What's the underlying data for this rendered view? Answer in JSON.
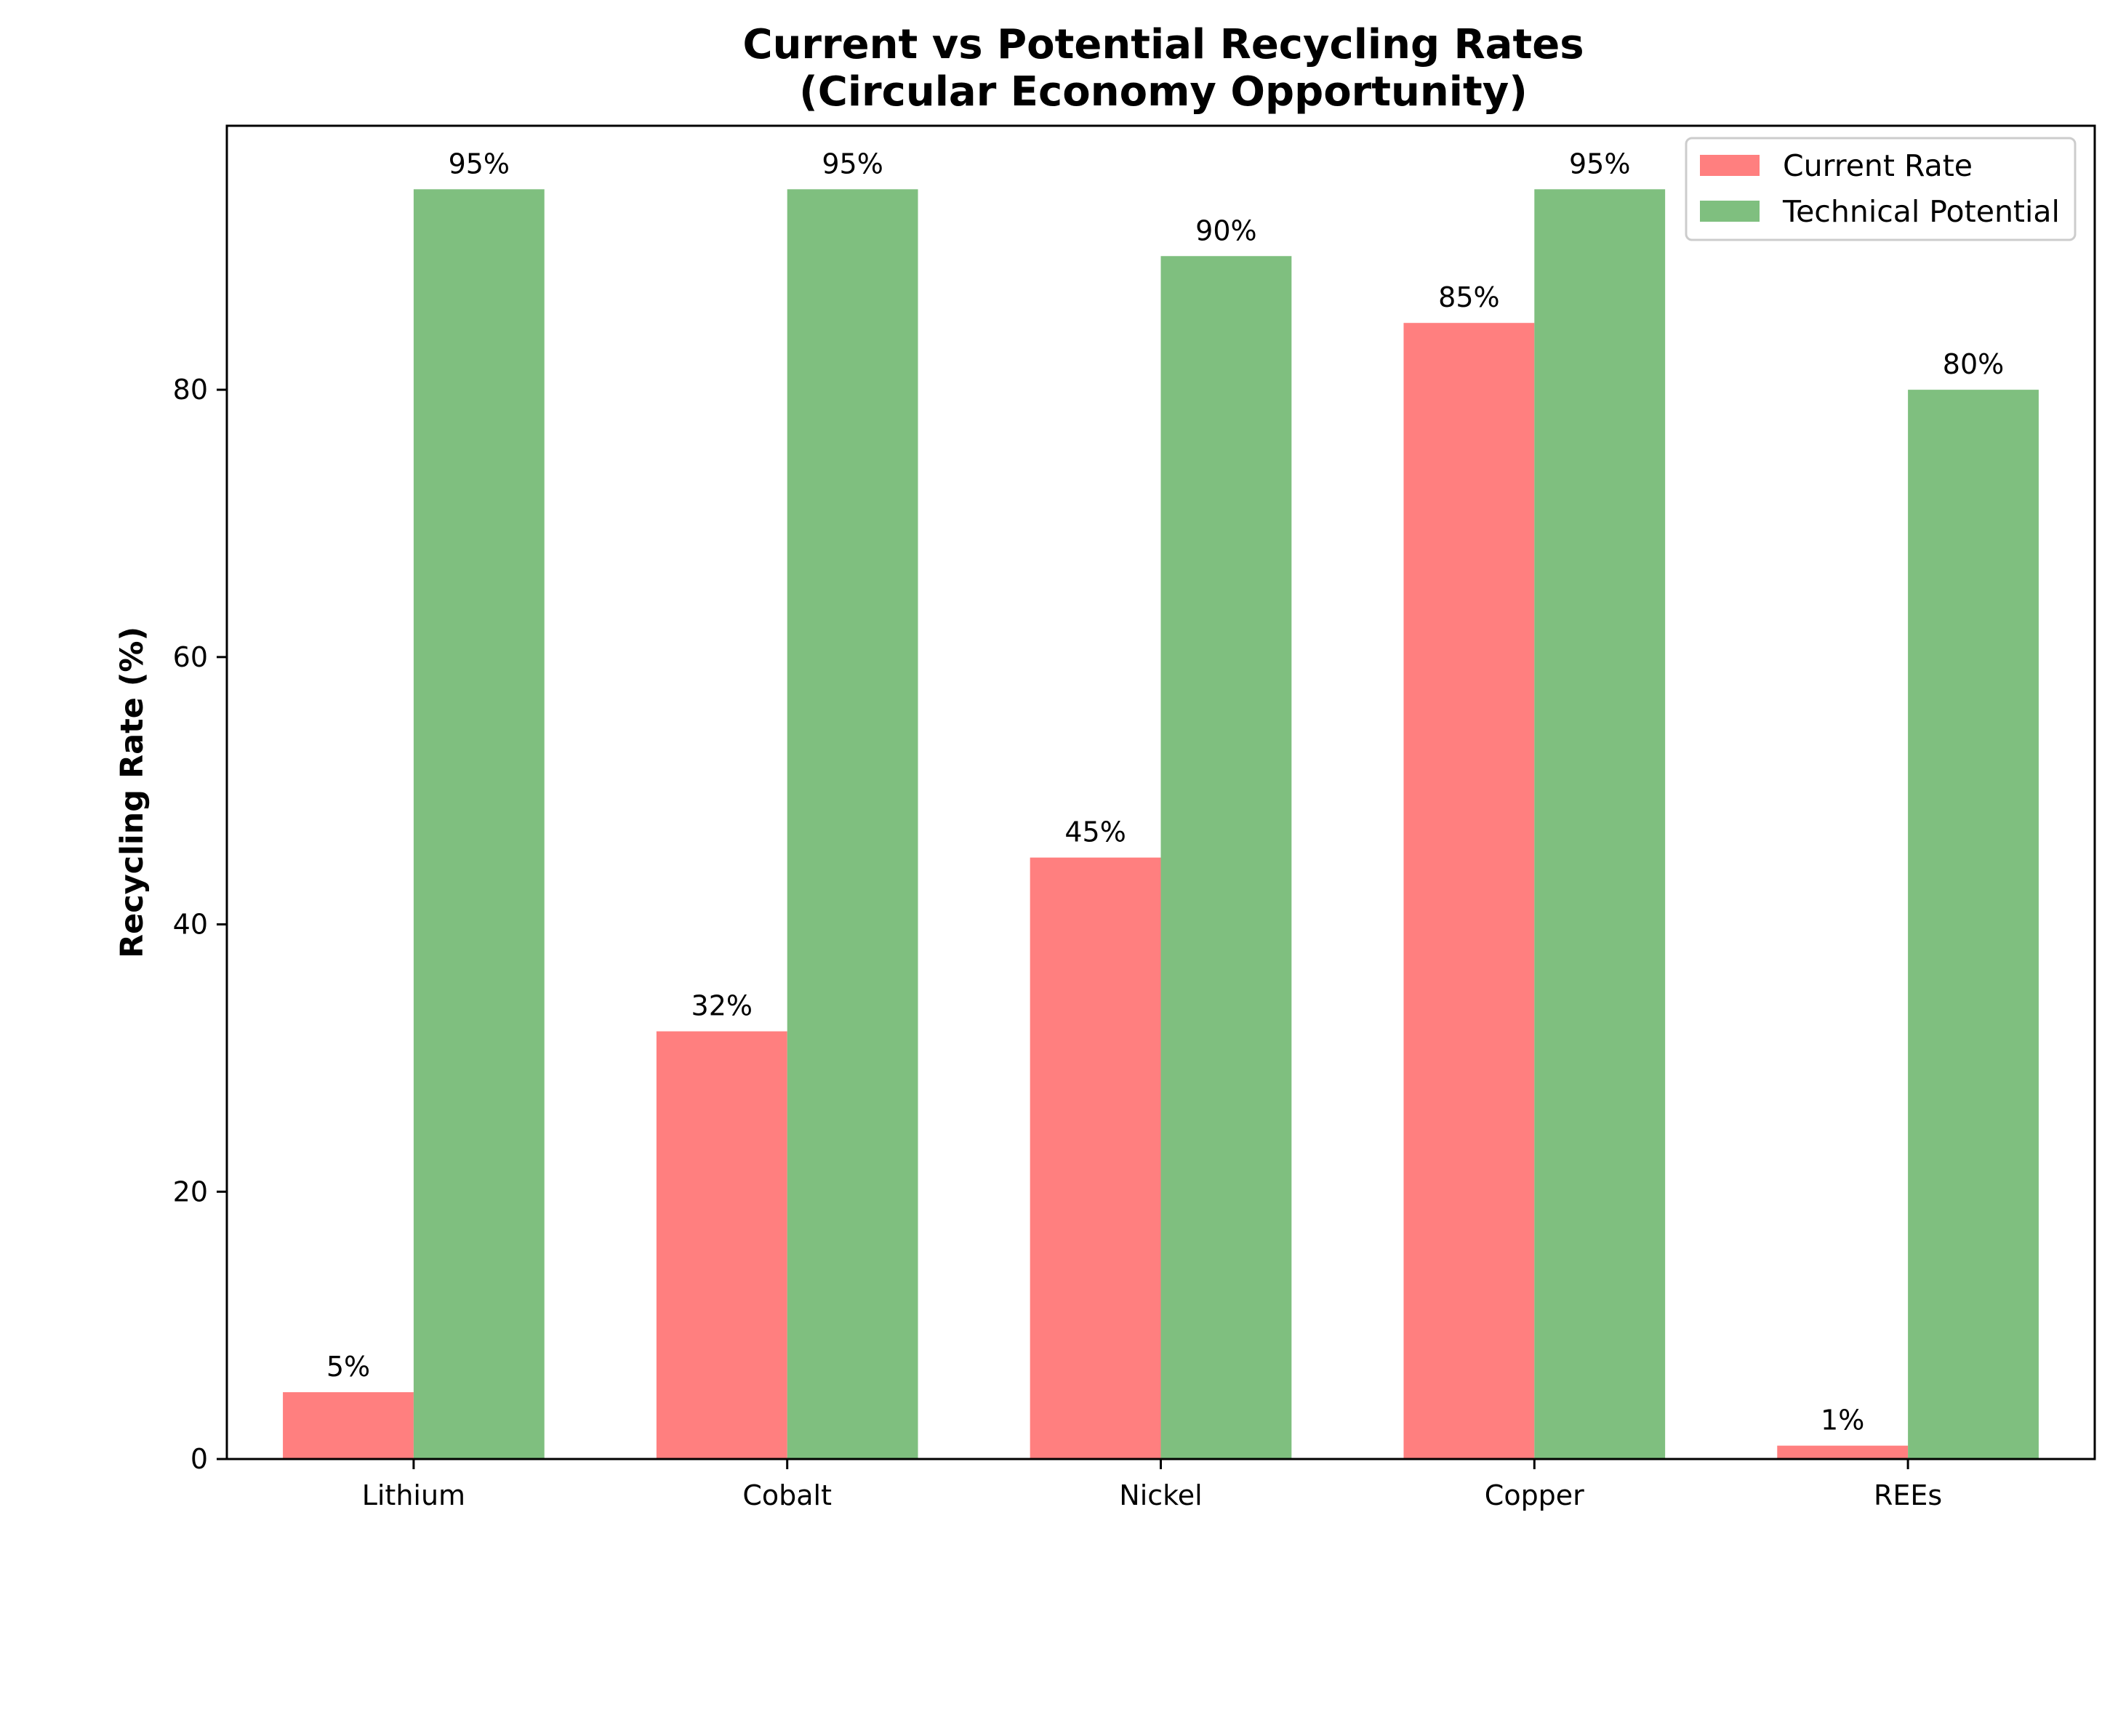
{
  "chart_data": {
    "type": "bar",
    "title": "Current vs Potential Recycling Rates\n(Circular Economy Opportunity)",
    "title_lines": [
      "Current vs Potential Recycling Rates",
      "(Circular Economy Opportunity)"
    ],
    "xlabel": "",
    "ylabel": "Recycling Rate (%)",
    "categories": [
      "Lithium",
      "Cobalt",
      "Nickel",
      "Copper",
      "REEs"
    ],
    "series": [
      {
        "name": "Current Rate",
        "values": [
          5,
          32,
          45,
          85,
          1
        ],
        "color": "#ff7f7f",
        "labels": [
          "5%",
          "32%",
          "45%",
          "85%",
          "1%"
        ]
      },
      {
        "name": "Technical Potential",
        "values": [
          95,
          95,
          90,
          95,
          80
        ],
        "color": "#7fbf7f",
        "labels": [
          "95%",
          "95%",
          "90%",
          "95%",
          "80%"
        ]
      }
    ],
    "ylim": [
      0,
      99.75
    ],
    "yticks": [
      0,
      20,
      40,
      60,
      80
    ],
    "ytick_labels": [
      "0",
      "20",
      "40",
      "60",
      "80"
    ],
    "grid": false,
    "legend_position": "top-right"
  }
}
